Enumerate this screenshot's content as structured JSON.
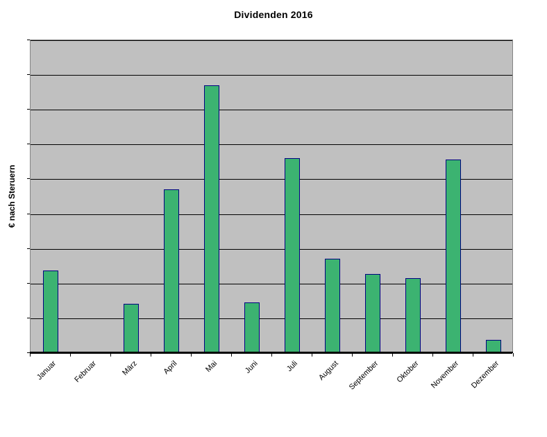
{
  "chart_data": {
    "type": "bar",
    "title": "Dividenden 2016",
    "xlabel": "",
    "ylabel": "€ nach Steruern",
    "categories": [
      "Januar",
      "Februar",
      "März",
      "April",
      "Mai",
      "Juni",
      "Juli",
      "August",
      "September",
      "Oktober",
      "November",
      "Dezember"
    ],
    "values": [
      2.35,
      0,
      1.4,
      4.7,
      7.7,
      1.45,
      5.6,
      2.7,
      2.25,
      2.15,
      5.55,
      0.35
    ],
    "ylim": [
      0,
      9
    ],
    "y_tick_labels": [],
    "value_note": "y-axis shows no numeric labels; values estimated in gridline units (1 unit = 1 horizontal gridline interval)",
    "grid": "horizontal gridlines on, 9 intervals",
    "legend": "none",
    "x_label_rotation_deg": -45,
    "colors": {
      "bar_fill": "#3CB371",
      "bar_border": "#000080",
      "plot_background": "#C0C0C0",
      "gridline": "#000000",
      "page_background": "#FFFFFF",
      "text": "#000000"
    }
  }
}
